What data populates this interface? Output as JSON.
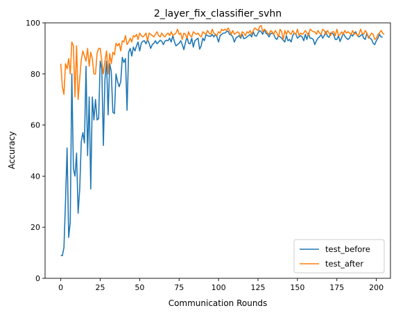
{
  "chart_data": {
    "type": "line",
    "title": "2_layer_fix_classifier_svhn",
    "xlabel": "Communication Rounds",
    "ylabel": "Accuracy",
    "xlim": [
      -9.95,
      208.95
    ],
    "ylim": [
      0,
      100
    ],
    "xticks": [
      0,
      25,
      50,
      75,
      100,
      125,
      150,
      175,
      200
    ],
    "yticks": [
      0,
      20,
      40,
      60,
      80,
      100
    ],
    "grid": false,
    "legend_position": "lower-right",
    "series": [
      {
        "name": "test_before",
        "color": "#1f77b4",
        "values": [
          8.9,
          8.9,
          12,
          30,
          51,
          16,
          22,
          80,
          43,
          40,
          49,
          25.5,
          35,
          53.5,
          57,
          53,
          83,
          48,
          71,
          35,
          71,
          62,
          70,
          62,
          62.5,
          85,
          82,
          52,
          78,
          85,
          64,
          84,
          81,
          65,
          64.5,
          80,
          77,
          75,
          77,
          86.5,
          84.5,
          86,
          65.8,
          88.5,
          90,
          87,
          90.5,
          89,
          91,
          92.5,
          89,
          92,
          92.8,
          93,
          91.8,
          93.5,
          92,
          90,
          91.5,
          92,
          93,
          91.8,
          92.5,
          93.2,
          92.8,
          91.5,
          92.8,
          93.2,
          93,
          94,
          92.5,
          95,
          92.7,
          91,
          91.5,
          92,
          93,
          91.5,
          89.5,
          92.2,
          94.5,
          92,
          91.8,
          94,
          90.5,
          93,
          93.5,
          94,
          89.7,
          91,
          94,
          93,
          95.3,
          95,
          94.8,
          94.7,
          95.5,
          94.5,
          95.5,
          94.5,
          92.5,
          95,
          95.5,
          96,
          96,
          96.5,
          96.8,
          95.5,
          95.3,
          94.5,
          92.5,
          94,
          94.5,
          95,
          94,
          95.5,
          93.8,
          94,
          94.5,
          95,
          95.5,
          94.5,
          96.5,
          95,
          94.8,
          96,
          97,
          96.5,
          95.5,
          97.5,
          96,
          95.5,
          94.5,
          95.8,
          96,
          95.5,
          94,
          93.5,
          95,
          94.5,
          94,
          93.2,
          92.5,
          95,
          93,
          93.5,
          92.5,
          95,
          96,
          95.5,
          94,
          94.5,
          95,
          94.5,
          93,
          95.5,
          93.5,
          96,
          94,
          94,
          93.5,
          91.5,
          93,
          94,
          94.5,
          95.5,
          94,
          95,
          96.5,
          94.8,
          94.3,
          96,
          96,
          95.3,
          93.5,
          93.5,
          95,
          92.7,
          94.2,
          96,
          94.8,
          94,
          93.5,
          94,
          95.5,
          94.8,
          96,
          96.5,
          95,
          94.5,
          95,
          95.5,
          94,
          93.5,
          96,
          94.5,
          94,
          93.5,
          92,
          91.5,
          93,
          94,
          95.5,
          94.5,
          94.4
        ]
      },
      {
        "name": "test_after",
        "color": "#ff7f0e",
        "values": [
          84,
          75,
          72,
          84,
          82,
          86,
          80,
          92.5,
          91,
          71,
          91,
          70,
          78,
          85.5,
          89,
          87,
          85,
          90,
          83,
          88.5,
          86,
          80,
          80,
          88,
          90,
          90,
          85,
          80,
          85,
          89,
          80,
          88,
          84,
          88.5,
          87.5,
          92,
          91,
          92,
          89,
          93,
          92.5,
          95,
          91.5,
          92.5,
          94,
          92.5,
          95,
          94.5,
          95.5,
          93.5,
          96,
          95,
          94.5,
          95,
          96,
          93,
          96,
          95.5,
          95,
          94.5,
          95.5,
          96.5,
          95,
          94.5,
          96,
          95,
          94.5,
          95.5,
          96,
          95,
          96.5,
          95,
          95.5,
          96,
          97.5,
          95.5,
          96,
          93.5,
          96,
          95.5,
          94,
          96.5,
          95,
          94.5,
          96.5,
          96,
          95.5,
          96,
          95,
          94.5,
          96.5,
          96,
          95.5,
          97,
          96,
          95.5,
          97.5,
          96,
          95.5,
          95,
          96.5,
          96,
          97.5,
          97,
          97.5,
          97,
          98,
          97,
          95.5,
          97,
          95.5,
          96,
          96.5,
          96,
          94.5,
          96.5,
          96,
          95,
          96.5,
          96,
          97,
          95.5,
          97,
          98,
          97.5,
          97,
          98.5,
          99,
          96.5,
          97.5,
          97,
          96,
          95.5,
          97,
          96.5,
          95.5,
          97,
          96,
          94.5,
          97.5,
          96.5,
          93.5,
          97,
          95.5,
          97,
          96,
          95.5,
          97,
          96,
          95.5,
          97.5,
          95,
          96,
          95.5,
          96,
          97,
          96,
          95,
          97.5,
          97,
          96.5,
          96.5,
          95.5,
          97,
          96,
          95.5,
          97.5,
          97,
          95.5,
          97,
          96,
          95,
          96.5,
          96.5,
          95,
          97.5,
          95,
          95.5,
          96.5,
          95.5,
          97,
          96,
          96.5,
          96,
          95.5,
          97,
          95.5,
          96,
          95,
          95.5,
          97.5,
          96,
          95.5,
          97,
          96,
          94,
          95,
          96,
          95.5,
          93.5,
          94,
          95.5,
          96,
          97,
          96,
          95.5
        ]
      }
    ]
  }
}
